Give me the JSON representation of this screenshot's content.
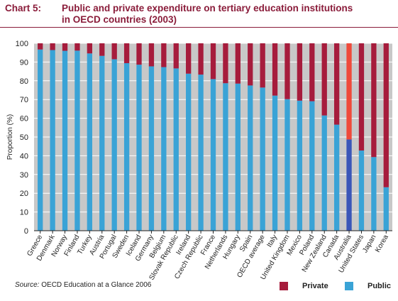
{
  "title": {
    "prefix": "Chart 5:",
    "line1": "Public and private expenditure on tertiary education institutions",
    "line2": "in OECD countries (2003)"
  },
  "source": {
    "label": "Source:",
    "text": "OECD Education at a Glance 2006"
  },
  "legend": {
    "private": "Private",
    "public": "Public"
  },
  "colors": {
    "private": "#a61c3c",
    "public": "#3aa3d6",
    "highlight_private": "#ef4a3a",
    "highlight_public": "#3a56b8",
    "plot_background": "#c8c8c8",
    "gridline": "#ffffff"
  },
  "chart_data": {
    "type": "bar",
    "stacked": true,
    "ylabel": "Proportion (%)",
    "ylim": [
      0,
      100
    ],
    "yticks": [
      0,
      10,
      20,
      30,
      40,
      50,
      60,
      70,
      80,
      90,
      100
    ],
    "grid": true,
    "legend_position": "bottom-right",
    "categories": [
      "Greece",
      "Denmark",
      "Norway",
      "Finland",
      "Turkey",
      "Austria",
      "Portugal",
      "Sweden",
      "Iceland",
      "Germany",
      "Belgium",
      "Slovak Republic",
      "Ireland",
      "Czech Republic",
      "France",
      "Netherlands",
      "Hungary",
      "Spain",
      "OECD average",
      "Italy",
      "United Kingdom",
      "Mexico",
      "Poland",
      "New Zealand",
      "Canada",
      "Australia",
      "United States",
      "Japan",
      "Korea"
    ],
    "highlight": "Australia",
    "series": [
      {
        "name": "Public",
        "values": [
          96.7,
          96.4,
          96.0,
          96.1,
          94.6,
          93.3,
          91.5,
          89.4,
          88.6,
          87.7,
          87.3,
          86.6,
          83.8,
          83.3,
          80.9,
          78.7,
          78.5,
          77.5,
          76.4,
          72.1,
          70.2,
          69.4,
          69.1,
          61.5,
          56.6,
          48.7,
          42.8,
          39.3,
          23.2
        ]
      },
      {
        "name": "Private",
        "values": [
          3.3,
          3.6,
          4.0,
          3.9,
          5.4,
          6.7,
          8.5,
          10.6,
          11.4,
          12.3,
          12.7,
          13.4,
          16.2,
          16.7,
          19.1,
          21.3,
          21.5,
          22.5,
          23.6,
          27.9,
          29.8,
          30.6,
          30.9,
          38.5,
          43.4,
          51.3,
          57.2,
          60.7,
          76.8
        ]
      }
    ]
  }
}
